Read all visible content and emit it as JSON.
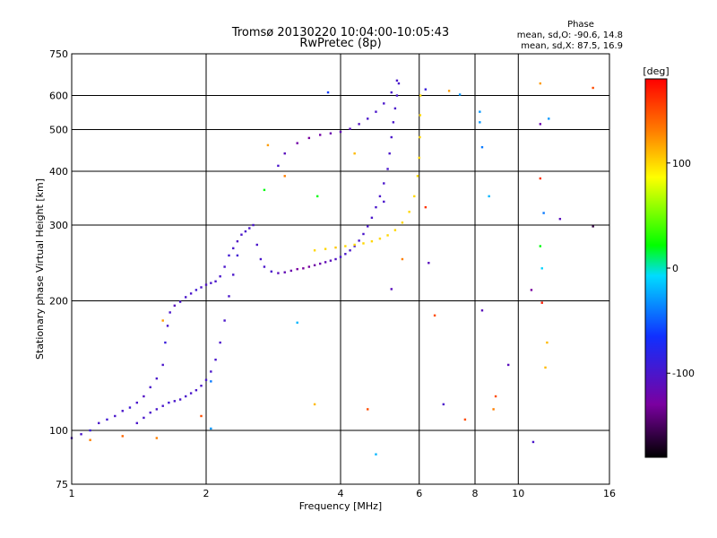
{
  "chart_data": {
    "type": "scatter",
    "title": "Tromsø 20130220 10:04:00-10:05:43",
    "subtitle": "RwPretec (8p)",
    "xlabel": "Frequency [MHz]",
    "ylabel": "Stationary phase Virtual Height [km]",
    "x_scale": "log",
    "y_scale": "log",
    "xlim": [
      1,
      16
    ],
    "ylim": [
      75,
      750
    ],
    "x_ticks": [
      {
        "v": 1,
        "label": "1"
      },
      {
        "v": 2,
        "label": "2"
      },
      {
        "v": 4,
        "label": "4"
      },
      {
        "v": 6,
        "label": "6"
      },
      {
        "v": 8,
        "label": "8"
      },
      {
        "v": 10,
        "label": "10"
      },
      {
        "v": 16,
        "label": "16"
      }
    ],
    "y_ticks": [
      {
        "v": 75,
        "label": "75"
      },
      {
        "v": 100,
        "label": "100"
      },
      {
        "v": 200,
        "label": "200"
      },
      {
        "v": 300,
        "label": "300"
      },
      {
        "v": 400,
        "label": "400"
      },
      {
        "v": 500,
        "label": "500"
      },
      {
        "v": 600,
        "label": "600"
      },
      {
        "v": 750,
        "label": "750"
      }
    ],
    "grid": true,
    "phase_box": {
      "title": "Phase",
      "line1": "mean, sd,O: -90.6, 14.8",
      "line2": "mean, sd,X: 87.5, 16.9"
    },
    "colorbar": {
      "label": "[deg]",
      "range": [
        -180,
        180
      ],
      "ticks": [
        {
          "v": 100,
          "label": "100"
        },
        {
          "v": 0,
          "label": "0"
        },
        {
          "v": -100,
          "label": "-100"
        }
      ]
    },
    "series": [
      {
        "points": [
          [
            1.0,
            96,
            -100
          ],
          [
            1.05,
            98,
            -100
          ],
          [
            1.1,
            100,
            -90
          ],
          [
            1.15,
            104,
            -100
          ],
          [
            1.2,
            106,
            -95
          ],
          [
            1.25,
            108,
            -100
          ],
          [
            1.3,
            111,
            -100
          ],
          [
            1.35,
            113,
            -95
          ],
          [
            1.4,
            116,
            -100
          ],
          [
            1.45,
            120,
            -105
          ],
          [
            1.5,
            126,
            -100
          ],
          [
            1.55,
            132,
            -100
          ],
          [
            1.6,
            142,
            -100
          ],
          [
            1.62,
            160,
            -90
          ],
          [
            1.64,
            175,
            -100
          ],
          [
            1.66,
            188,
            -100
          ],
          [
            1.7,
            195,
            -110
          ],
          [
            1.75,
            199,
            -100
          ],
          [
            1.8,
            204,
            -100
          ],
          [
            1.85,
            208,
            -100
          ],
          [
            1.9,
            212,
            -95
          ],
          [
            1.95,
            215,
            -100
          ],
          [
            2.0,
            218,
            -105
          ],
          [
            2.05,
            220,
            -100
          ],
          [
            2.1,
            222,
            -100
          ],
          [
            2.15,
            228,
            -100
          ],
          [
            2.2,
            240,
            -100
          ],
          [
            2.25,
            255,
            -95
          ],
          [
            2.3,
            265,
            -100
          ],
          [
            2.35,
            275,
            -105
          ],
          [
            2.4,
            285,
            -100
          ],
          [
            2.45,
            290,
            -100
          ],
          [
            2.5,
            295,
            -100
          ],
          [
            2.55,
            300,
            -100
          ],
          [
            2.6,
            270,
            -100
          ],
          [
            2.65,
            250,
            -100
          ],
          [
            2.7,
            240,
            -100
          ],
          [
            2.8,
            234,
            -100
          ],
          [
            2.9,
            232,
            -110
          ],
          [
            3.0,
            233,
            -115
          ],
          [
            3.1,
            235,
            -120
          ],
          [
            3.2,
            237,
            -130
          ],
          [
            3.3,
            238,
            -130
          ],
          [
            3.4,
            240,
            -130
          ],
          [
            3.5,
            242,
            -125
          ],
          [
            3.6,
            244,
            -120
          ],
          [
            3.7,
            246,
            -115
          ],
          [
            3.8,
            248,
            -110
          ],
          [
            3.9,
            250,
            -105
          ],
          [
            4.0,
            253,
            -100
          ],
          [
            4.1,
            257,
            -100
          ],
          [
            4.2,
            262,
            -100
          ],
          [
            4.3,
            268,
            -100
          ],
          [
            4.4,
            276,
            -100
          ],
          [
            4.5,
            286,
            -100
          ],
          [
            4.6,
            298,
            -100
          ],
          [
            4.7,
            312,
            -100
          ],
          [
            4.8,
            330,
            -100
          ],
          [
            4.9,
            350,
            -100
          ],
          [
            5.0,
            375,
            -100
          ],
          [
            5.1,
            405,
            -100
          ],
          [
            5.15,
            440,
            -100
          ],
          [
            5.2,
            480,
            -100
          ],
          [
            5.25,
            520,
            -100
          ],
          [
            5.3,
            560,
            -100
          ],
          [
            5.35,
            600,
            -100
          ],
          [
            5.4,
            640,
            -100
          ]
        ]
      },
      {
        "points": [
          [
            1.4,
            104,
            -100
          ],
          [
            1.45,
            107,
            -100
          ],
          [
            1.5,
            110,
            -100
          ],
          [
            1.55,
            112,
            -100
          ],
          [
            1.6,
            114,
            -100
          ],
          [
            1.65,
            116,
            -95
          ],
          [
            1.7,
            117,
            -100
          ],
          [
            1.75,
            118,
            -100
          ],
          [
            1.8,
            120,
            -100
          ],
          [
            1.85,
            122,
            -100
          ],
          [
            1.9,
            124,
            -100
          ],
          [
            1.95,
            127,
            -100
          ],
          [
            2.0,
            131,
            -100
          ],
          [
            2.05,
            137,
            -100
          ],
          [
            2.1,
            146,
            -100
          ],
          [
            2.15,
            160,
            -100
          ],
          [
            2.2,
            180,
            -100
          ],
          [
            2.25,
            205,
            -100
          ],
          [
            2.3,
            230,
            -100
          ],
          [
            2.35,
            255,
            -95
          ]
        ]
      },
      {
        "points": [
          [
            2.9,
            412,
            -100
          ],
          [
            3.0,
            440,
            -110
          ],
          [
            3.2,
            465,
            -125
          ],
          [
            3.4,
            478,
            -130
          ],
          [
            3.6,
            486,
            -125
          ],
          [
            3.8,
            490,
            -120
          ],
          [
            4.0,
            494,
            -115
          ],
          [
            4.2,
            502,
            -110
          ],
          [
            4.4,
            515,
            -105
          ],
          [
            4.6,
            530,
            -100
          ],
          [
            4.8,
            550,
            -100
          ],
          [
            5.0,
            575,
            -100
          ],
          [
            5.2,
            610,
            -100
          ],
          [
            5.35,
            650,
            -100
          ]
        ]
      },
      {
        "points": [
          [
            3.5,
            262,
            100
          ],
          [
            3.7,
            264,
            100
          ],
          [
            3.9,
            266,
            105
          ],
          [
            4.1,
            268,
            100
          ],
          [
            4.3,
            270,
            100
          ],
          [
            4.5,
            272,
            100
          ],
          [
            4.7,
            275,
            100
          ],
          [
            4.9,
            279,
            100
          ],
          [
            5.1,
            284,
            100
          ],
          [
            5.3,
            292,
            100
          ],
          [
            5.5,
            304,
            100
          ],
          [
            5.7,
            322,
            100
          ],
          [
            5.85,
            350,
            100
          ],
          [
            5.95,
            390,
            100
          ],
          [
            6.0,
            430,
            100
          ],
          [
            6.02,
            480,
            100
          ],
          [
            6.03,
            540,
            100
          ],
          [
            6.04,
            600,
            100
          ]
        ]
      },
      {
        "points": [
          [
            1.1,
            95,
            130
          ],
          [
            1.3,
            97,
            140
          ],
          [
            1.55,
            96,
            130
          ],
          [
            1.6,
            180,
            120
          ],
          [
            1.95,
            108,
            150
          ],
          [
            2.05,
            101,
            -30
          ],
          [
            2.05,
            130,
            -40
          ],
          [
            2.7,
            362,
            20
          ],
          [
            2.75,
            460,
            120
          ],
          [
            3.0,
            390,
            130
          ],
          [
            3.2,
            178,
            -20
          ],
          [
            3.5,
            115,
            110
          ],
          [
            3.55,
            350,
            20
          ],
          [
            3.75,
            610,
            -60
          ],
          [
            4.3,
            440,
            110
          ],
          [
            4.6,
            112,
            150
          ],
          [
            4.8,
            88,
            -20
          ],
          [
            5.0,
            340,
            -100
          ],
          [
            5.2,
            213,
            -110
          ],
          [
            5.5,
            250,
            130
          ],
          [
            6.2,
            330,
            160
          ],
          [
            6.2,
            620,
            -90
          ],
          [
            6.3,
            245,
            -110
          ],
          [
            6.5,
            185,
            150
          ],
          [
            6.8,
            115,
            -100
          ],
          [
            7.0,
            615,
            120
          ],
          [
            7.4,
            603,
            -30
          ],
          [
            7.6,
            106,
            150
          ],
          [
            8.2,
            520,
            -30
          ],
          [
            8.2,
            550,
            -30
          ],
          [
            8.3,
            455,
            -40
          ],
          [
            8.3,
            190,
            -110
          ],
          [
            8.6,
            350,
            -20
          ],
          [
            8.8,
            112,
            130
          ],
          [
            8.9,
            120,
            150
          ],
          [
            9.5,
            142,
            -110
          ],
          [
            10.7,
            212,
            -130
          ],
          [
            10.8,
            94,
            -100
          ],
          [
            11.2,
            640,
            120
          ],
          [
            11.2,
            385,
            160
          ],
          [
            11.2,
            268,
            20
          ],
          [
            11.2,
            515,
            -120
          ],
          [
            11.3,
            198,
            170
          ],
          [
            11.3,
            238,
            -10
          ],
          [
            11.4,
            320,
            -40
          ],
          [
            11.5,
            140,
            110
          ],
          [
            11.6,
            160,
            110
          ],
          [
            11.7,
            530,
            -30
          ],
          [
            12.4,
            310,
            -110
          ],
          [
            14.7,
            625,
            150
          ],
          [
            14.7,
            298,
            -160
          ]
        ]
      }
    ]
  }
}
